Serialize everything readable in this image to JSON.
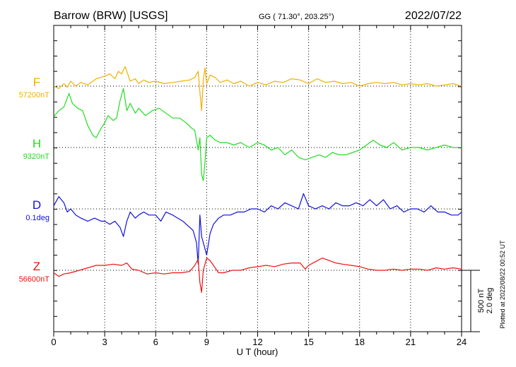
{
  "header": {
    "station": "Barrow (BRW)  [USGS]",
    "coords": "GG ( 71.30°, 203.25°)",
    "date": "2022/07/22"
  },
  "footer": {
    "plotted": "Plotted at 2022/08/22 00:52 UT"
  },
  "chart_data": {
    "type": "line",
    "xlabel": "U T (hour)",
    "xlim": [
      0,
      24
    ],
    "xticks": [
      0,
      3,
      6,
      9,
      12,
      15,
      18,
      21,
      24
    ],
    "scale_bar": {
      "nT": "500 nT",
      "deg": "2.0 deg"
    },
    "grid": true,
    "series": [
      {
        "name": "F",
        "baseline_label": "57200nT",
        "color": "#f0b000",
        "unit_per_div": 250,
        "base": 57200,
        "points": [
          [
            0,
            57200
          ],
          [
            0.3,
            57180
          ],
          [
            0.6,
            57220
          ],
          [
            0.8,
            57190
          ],
          [
            1.0,
            57240
          ],
          [
            1.3,
            57200
          ],
          [
            1.6,
            57230
          ],
          [
            2.0,
            57210
          ],
          [
            2.5,
            57260
          ],
          [
            3.0,
            57280
          ],
          [
            3.3,
            57300
          ],
          [
            3.6,
            57260
          ],
          [
            3.8,
            57320
          ],
          [
            4.0,
            57300
          ],
          [
            4.2,
            57360
          ],
          [
            4.5,
            57240
          ],
          [
            4.8,
            57260
          ],
          [
            5.0,
            57220
          ],
          [
            5.3,
            57250
          ],
          [
            5.6,
            57230
          ],
          [
            6.0,
            57240
          ],
          [
            6.5,
            57220
          ],
          [
            7.0,
            57230
          ],
          [
            7.5,
            57240
          ],
          [
            8.0,
            57250
          ],
          [
            8.3,
            57270
          ],
          [
            8.5,
            57320
          ],
          [
            8.6,
            57150
          ],
          [
            8.7,
            57000
          ],
          [
            8.8,
            57250
          ],
          [
            8.9,
            57350
          ],
          [
            9.0,
            57220
          ],
          [
            9.2,
            57290
          ],
          [
            9.5,
            57270
          ],
          [
            9.8,
            57230
          ],
          [
            10.2,
            57250
          ],
          [
            10.6,
            57220
          ],
          [
            11.0,
            57240
          ],
          [
            11.5,
            57200
          ],
          [
            12.0,
            57230
          ],
          [
            12.5,
            57210
          ],
          [
            13.0,
            57240
          ],
          [
            13.5,
            57230
          ],
          [
            14.0,
            57260
          ],
          [
            14.5,
            57250
          ],
          [
            15.0,
            57220
          ],
          [
            15.5,
            57260
          ],
          [
            16.0,
            57230
          ],
          [
            16.5,
            57240
          ],
          [
            17.0,
            57220
          ],
          [
            17.5,
            57230
          ],
          [
            18.0,
            57200
          ],
          [
            18.5,
            57220
          ],
          [
            19.0,
            57230
          ],
          [
            19.5,
            57220
          ],
          [
            20.0,
            57230
          ],
          [
            20.5,
            57210
          ],
          [
            21.0,
            57220
          ],
          [
            21.5,
            57210
          ],
          [
            22.0,
            57220
          ],
          [
            22.5,
            57200
          ],
          [
            23.0,
            57210
          ],
          [
            23.5,
            57220
          ],
          [
            24.0,
            57200
          ]
        ]
      },
      {
        "name": "H",
        "baseline_label": "9320nT",
        "color": "#22dd22",
        "unit_per_div": 250,
        "base": 9320,
        "points": [
          [
            0,
            9570
          ],
          [
            0.3,
            9620
          ],
          [
            0.6,
            9650
          ],
          [
            0.9,
            9760
          ],
          [
            1.1,
            9680
          ],
          [
            1.4,
            9640
          ],
          [
            1.7,
            9620
          ],
          [
            2.0,
            9500
          ],
          [
            2.3,
            9420
          ],
          [
            2.5,
            9400
          ],
          [
            2.8,
            9480
          ],
          [
            3.0,
            9520
          ],
          [
            3.2,
            9580
          ],
          [
            3.5,
            9540
          ],
          [
            3.7,
            9560
          ],
          [
            3.9,
            9700
          ],
          [
            4.1,
            9800
          ],
          [
            4.3,
            9620
          ],
          [
            4.5,
            9680
          ],
          [
            4.8,
            9600
          ],
          [
            5.0,
            9640
          ],
          [
            5.4,
            9580
          ],
          [
            5.8,
            9620
          ],
          [
            6.2,
            9640
          ],
          [
            6.6,
            9600
          ],
          [
            7.0,
            9560
          ],
          [
            7.4,
            9560
          ],
          [
            7.8,
            9520
          ],
          [
            8.1,
            9480
          ],
          [
            8.3,
            9460
          ],
          [
            8.5,
            9300
          ],
          [
            8.6,
            9400
          ],
          [
            8.7,
            9100
          ],
          [
            8.8,
            9050
          ],
          [
            8.9,
            9200
          ],
          [
            9.0,
            9400
          ],
          [
            9.2,
            9420
          ],
          [
            9.5,
            9380
          ],
          [
            9.8,
            9360
          ],
          [
            10.2,
            9360
          ],
          [
            10.6,
            9340
          ],
          [
            11.0,
            9360
          ],
          [
            11.5,
            9320
          ],
          [
            12.0,
            9360
          ],
          [
            12.4,
            9340
          ],
          [
            12.8,
            9300
          ],
          [
            13.2,
            9320
          ],
          [
            13.6,
            9260
          ],
          [
            14.0,
            9300
          ],
          [
            14.4,
            9240
          ],
          [
            14.8,
            9220
          ],
          [
            15.2,
            9240
          ],
          [
            15.6,
            9260
          ],
          [
            16.0,
            9240
          ],
          [
            16.4,
            9280
          ],
          [
            16.8,
            9260
          ],
          [
            17.2,
            9260
          ],
          [
            17.6,
            9280
          ],
          [
            18.0,
            9300
          ],
          [
            18.4,
            9340
          ],
          [
            18.8,
            9380
          ],
          [
            19.2,
            9340
          ],
          [
            19.6,
            9320
          ],
          [
            20.0,
            9360
          ],
          [
            20.5,
            9300
          ],
          [
            21.0,
            9320
          ],
          [
            21.5,
            9320
          ],
          [
            22.0,
            9300
          ],
          [
            22.5,
            9320
          ],
          [
            23.0,
            9340
          ],
          [
            23.5,
            9320
          ],
          [
            24.0,
            9320
          ]
        ]
      },
      {
        "name": "D",
        "baseline_label": "0.1deg",
        "color": "#1111dd",
        "unit_per_div": 1.0,
        "base": 0.1,
        "points": [
          [
            0,
            0.2
          ],
          [
            0.3,
            0.5
          ],
          [
            0.6,
            0.3
          ],
          [
            0.8,
            0.0
          ],
          [
            1.0,
            0.1
          ],
          [
            1.3,
            -0.1
          ],
          [
            1.6,
            -0.2
          ],
          [
            2.0,
            -0.3
          ],
          [
            2.4,
            -0.2
          ],
          [
            2.8,
            -0.3
          ],
          [
            3.0,
            -0.3
          ],
          [
            3.3,
            -0.4
          ],
          [
            3.6,
            -0.3
          ],
          [
            3.9,
            -0.5
          ],
          [
            4.1,
            -0.8
          ],
          [
            4.3,
            -0.3
          ],
          [
            4.5,
            0.0
          ],
          [
            4.8,
            -0.2
          ],
          [
            5.0,
            -0.1
          ],
          [
            5.3,
            0.0
          ],
          [
            5.6,
            -0.1
          ],
          [
            6.0,
            -0.1
          ],
          [
            6.3,
            -0.3
          ],
          [
            6.6,
            0.0
          ],
          [
            7.0,
            -0.1
          ],
          [
            7.3,
            -0.2
          ],
          [
            7.6,
            -0.3
          ],
          [
            8.0,
            -0.5
          ],
          [
            8.2,
            -0.6
          ],
          [
            8.4,
            -1.0
          ],
          [
            8.5,
            -1.7
          ],
          [
            8.6,
            -0.1
          ],
          [
            8.7,
            -0.8
          ],
          [
            8.8,
            -1.0
          ],
          [
            9.0,
            -1.4
          ],
          [
            9.2,
            -0.7
          ],
          [
            9.4,
            -0.4
          ],
          [
            9.7,
            -0.2
          ],
          [
            10.0,
            -0.1
          ],
          [
            10.4,
            -0.1
          ],
          [
            10.8,
            0.0
          ],
          [
            11.2,
            0.0
          ],
          [
            11.6,
            0.1
          ],
          [
            12.0,
            0.1
          ],
          [
            12.4,
            0.0
          ],
          [
            12.8,
            0.2
          ],
          [
            13.2,
            0.1
          ],
          [
            13.6,
            0.3
          ],
          [
            14.0,
            0.2
          ],
          [
            14.4,
            0.1
          ],
          [
            14.7,
            0.6
          ],
          [
            15.0,
            0.2
          ],
          [
            15.4,
            0.1
          ],
          [
            15.8,
            0.2
          ],
          [
            16.2,
            0.1
          ],
          [
            16.6,
            0.3
          ],
          [
            17.0,
            0.2
          ],
          [
            17.4,
            0.2
          ],
          [
            17.8,
            0.3
          ],
          [
            18.2,
            0.2
          ],
          [
            18.6,
            0.4
          ],
          [
            19.0,
            0.2
          ],
          [
            19.4,
            0.4
          ],
          [
            19.8,
            0.1
          ],
          [
            20.2,
            0.2
          ],
          [
            20.6,
            0.0
          ],
          [
            21.0,
            0.1
          ],
          [
            21.4,
            0.1
          ],
          [
            21.8,
            0.0
          ],
          [
            22.2,
            0.2
          ],
          [
            22.6,
            0.0
          ],
          [
            23.0,
            0.0
          ],
          [
            23.4,
            -0.1
          ],
          [
            23.8,
            -0.1
          ],
          [
            24.0,
            0.0
          ]
        ]
      },
      {
        "name": "Z",
        "baseline_label": "56600nT",
        "color": "#ee1111",
        "unit_per_div": 250,
        "base": 56600,
        "points": [
          [
            0,
            56580
          ],
          [
            0.3,
            56550
          ],
          [
            0.6,
            56570
          ],
          [
            1.0,
            56580
          ],
          [
            1.5,
            56600
          ],
          [
            2.0,
            56620
          ],
          [
            2.5,
            56640
          ],
          [
            3.0,
            56640
          ],
          [
            3.5,
            56650
          ],
          [
            4.0,
            56640
          ],
          [
            4.3,
            56660
          ],
          [
            4.6,
            56610
          ],
          [
            5.0,
            56600
          ],
          [
            5.5,
            56570
          ],
          [
            6.0,
            56580
          ],
          [
            6.5,
            56570
          ],
          [
            7.0,
            56580
          ],
          [
            7.5,
            56580
          ],
          [
            8.0,
            56590
          ],
          [
            8.3,
            56640
          ],
          [
            8.5,
            56690
          ],
          [
            8.6,
            56500
          ],
          [
            8.7,
            56420
          ],
          [
            8.8,
            56600
          ],
          [
            9.0,
            56700
          ],
          [
            9.2,
            56680
          ],
          [
            9.4,
            56640
          ],
          [
            9.7,
            56580
          ],
          [
            10.0,
            56580
          ],
          [
            10.5,
            56600
          ],
          [
            11.0,
            56600
          ],
          [
            11.5,
            56620
          ],
          [
            12.0,
            56630
          ],
          [
            12.5,
            56640
          ],
          [
            13.0,
            56630
          ],
          [
            13.5,
            56650
          ],
          [
            14.0,
            56660
          ],
          [
            14.5,
            56660
          ],
          [
            14.8,
            56610
          ],
          [
            15.0,
            56640
          ],
          [
            15.4,
            56670
          ],
          [
            15.8,
            56700
          ],
          [
            16.2,
            56680
          ],
          [
            16.6,
            56660
          ],
          [
            17.0,
            56650
          ],
          [
            17.5,
            56640
          ],
          [
            18.0,
            56630
          ],
          [
            18.5,
            56610
          ],
          [
            19.0,
            56600
          ],
          [
            19.5,
            56600
          ],
          [
            20.0,
            56610
          ],
          [
            20.5,
            56600
          ],
          [
            21.0,
            56610
          ],
          [
            21.5,
            56610
          ],
          [
            22.0,
            56600
          ],
          [
            22.5,
            56620
          ],
          [
            23.0,
            56610
          ],
          [
            23.5,
            56620
          ],
          [
            24.0,
            56610
          ]
        ]
      }
    ]
  }
}
